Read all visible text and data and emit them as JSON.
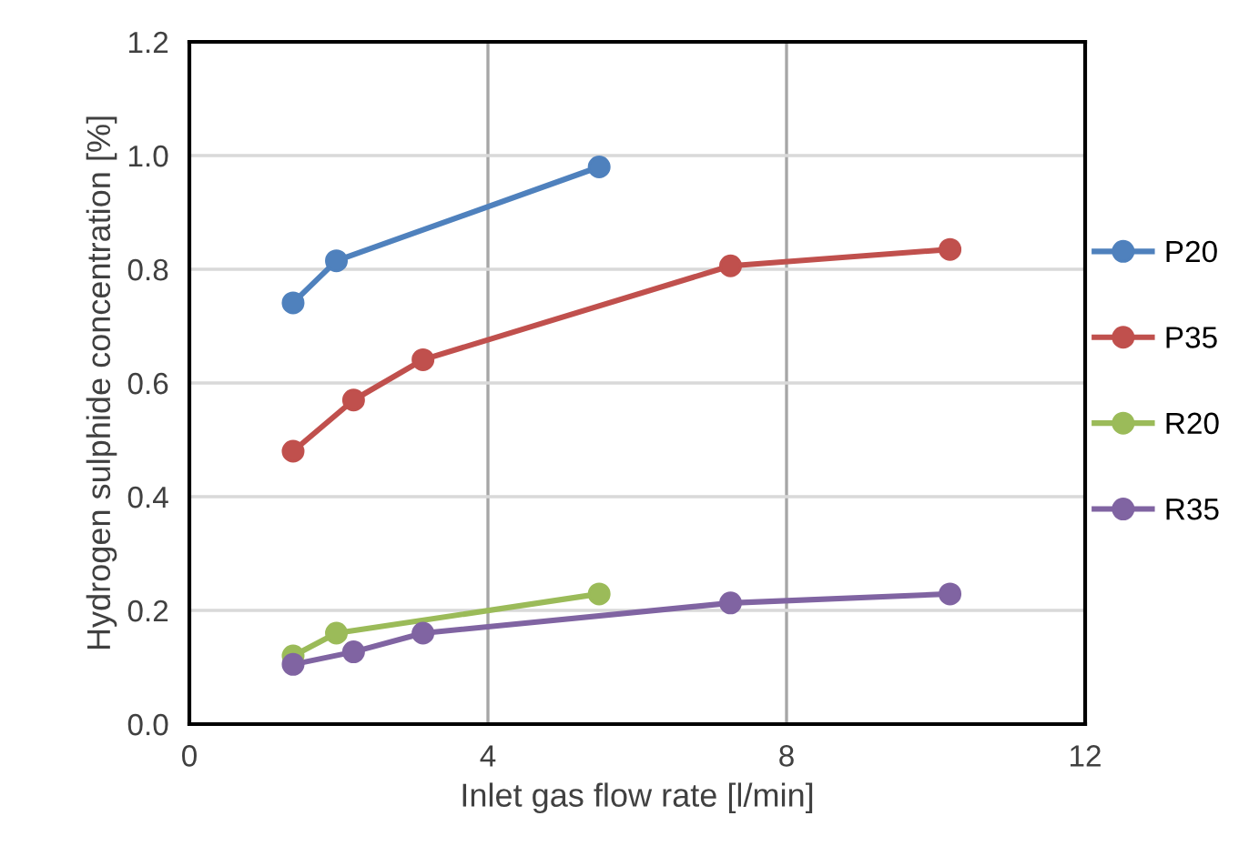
{
  "chart_data": {
    "type": "line",
    "xlabel": "Inlet gas flow rate [l/min]",
    "ylabel": "Hydrogen sulphide concentration [%]",
    "xlim": [
      0,
      12
    ],
    "xticks": [
      0,
      4,
      8,
      12
    ],
    "ylim": [
      0,
      1.2
    ],
    "yticks": [
      {
        "value": 0,
        "label": "0.0"
      },
      {
        "value": 0.2,
        "label": "0.2"
      },
      {
        "value": 0.4,
        "label": "0.4"
      },
      {
        "value": 0.6,
        "label": "0.6"
      },
      {
        "value": 0.8,
        "label": "0.8"
      },
      {
        "value": 1.0,
        "label": "1.0"
      },
      {
        "value": 1.2,
        "label": "1.2"
      }
    ],
    "grid": true,
    "legend": "right",
    "marker": "circle",
    "line_style": "solid",
    "series": [
      {
        "name": "P20",
        "color": "#4f81bd",
        "x": [
          1.39,
          1.97,
          5.49
        ],
        "values": [
          0.741,
          0.815,
          0.98
        ]
      },
      {
        "name": "P35",
        "color": "#c0504d",
        "x": [
          1.39,
          2.2,
          3.13,
          7.25,
          10.19
        ],
        "values": [
          0.48,
          0.57,
          0.641,
          0.806,
          0.835
        ]
      },
      {
        "name": "R20",
        "color": "#9bbb59",
        "x": [
          1.39,
          1.97,
          5.49
        ],
        "values": [
          0.12,
          0.16,
          0.229
        ]
      },
      {
        "name": "R35",
        "color": "#8064a2",
        "x": [
          1.39,
          2.2,
          3.13,
          7.25,
          10.19
        ],
        "values": [
          0.105,
          0.127,
          0.16,
          0.213,
          0.229
        ]
      }
    ]
  }
}
